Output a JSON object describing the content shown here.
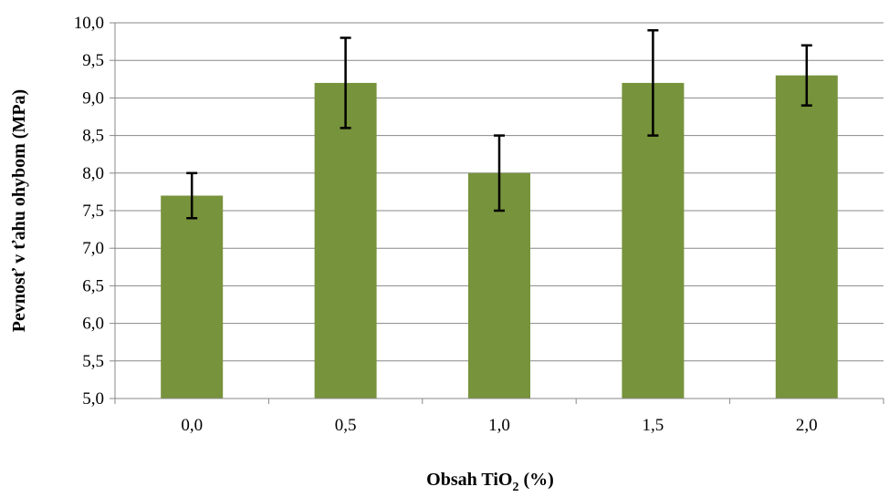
{
  "chart_data": {
    "type": "bar",
    "categories": [
      "0,0",
      "0,5",
      "1,0",
      "1,5",
      "2,0"
    ],
    "values": [
      7.7,
      9.2,
      8.0,
      9.2,
      9.3
    ],
    "error_low": [
      7.4,
      8.6,
      7.5,
      8.5,
      8.9
    ],
    "error_high": [
      8.0,
      9.8,
      8.5,
      9.9,
      9.7
    ],
    "ylim": [
      5.0,
      10.0
    ],
    "yticks": [
      "5,0",
      "5,5",
      "6,0",
      "6,5",
      "7,0",
      "7,5",
      "8,0",
      "8,5",
      "9,0",
      "9,5",
      "10,0"
    ],
    "xlabel": "Obsah TiO",
    "xlabel_sub": "2",
    "xlabel_suffix": " (%)",
    "ylabel": "Pevnosť v ťahu ohybom (MPa)",
    "grid": true,
    "bar_color": "#77933c",
    "error_bar_color": "#000000",
    "grid_color": "#888888"
  }
}
